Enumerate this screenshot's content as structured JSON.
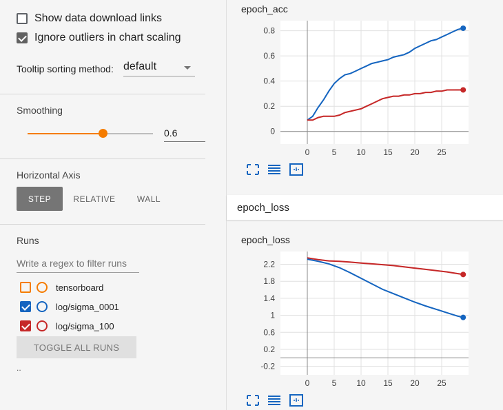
{
  "sidebar": {
    "show_download_label": "Show data download links",
    "show_download_checked": false,
    "ignore_outliers_label": "Ignore outliers in chart scaling",
    "ignore_outliers_checked": true,
    "tooltip_label": "Tooltip sorting method:",
    "tooltip_value": "default",
    "smoothing_title": "Smoothing",
    "smoothing_value": "0.6",
    "smoothing_fraction": 0.6,
    "horizontal_axis_title": "Horizontal Axis",
    "axis_buttons": [
      "STEP",
      "RELATIVE",
      "WALL"
    ],
    "axis_selected": "STEP",
    "runs_title": "Runs",
    "runs_filter_placeholder": "Write a regex to filter runs",
    "runs": [
      {
        "name": "tensorboard",
        "checked": false,
        "color": "#f57c00"
      },
      {
        "name": "log/sigma_0001",
        "checked": true,
        "color": "#1565c0"
      },
      {
        "name": "log/sigma_100",
        "checked": true,
        "color": "#c62828"
      }
    ],
    "toggle_all_label": "TOGGLE ALL RUNS",
    "dotdot": ".."
  },
  "main": {
    "acc_card_title": "epoch_acc",
    "group_header": "epoch_loss",
    "loss_card_title": "epoch_loss",
    "icons": [
      "expand-icon",
      "list-icon",
      "fit-domain-icon"
    ]
  },
  "chart_data": [
    {
      "type": "line",
      "title": "epoch_acc",
      "xlabel": "",
      "ylabel": "",
      "xlim": [
        -5,
        30
      ],
      "ylim": [
        -0.1,
        0.88
      ],
      "xticks": [
        0,
        5,
        10,
        15,
        20,
        25
      ],
      "yticks": [
        0,
        0.2,
        0.4,
        0.6,
        0.8
      ],
      "ytick_labels": [
        "0",
        "0.2",
        "0.4",
        "0.6",
        "0.8"
      ],
      "series": [
        {
          "color": "#1565c0",
          "x": [
            0,
            1,
            2,
            3,
            4,
            5,
            6,
            7,
            8,
            9,
            10,
            11,
            12,
            13,
            14,
            15,
            16,
            17,
            18,
            19,
            20,
            21,
            22,
            23,
            24,
            25,
            26,
            27,
            28,
            29
          ],
          "y": [
            0.09,
            0.12,
            0.19,
            0.25,
            0.32,
            0.38,
            0.42,
            0.45,
            0.46,
            0.48,
            0.5,
            0.52,
            0.54,
            0.55,
            0.56,
            0.57,
            0.59,
            0.6,
            0.61,
            0.63,
            0.66,
            0.68,
            0.7,
            0.72,
            0.73,
            0.75,
            0.77,
            0.79,
            0.81,
            0.82
          ]
        },
        {
          "color": "#c62828",
          "x": [
            0,
            1,
            2,
            3,
            4,
            5,
            6,
            7,
            8,
            9,
            10,
            11,
            12,
            13,
            14,
            15,
            16,
            17,
            18,
            19,
            20,
            21,
            22,
            23,
            24,
            25,
            26,
            27,
            28,
            29
          ],
          "y": [
            0.09,
            0.09,
            0.11,
            0.12,
            0.12,
            0.12,
            0.13,
            0.15,
            0.16,
            0.17,
            0.18,
            0.2,
            0.22,
            0.24,
            0.26,
            0.27,
            0.28,
            0.28,
            0.29,
            0.29,
            0.3,
            0.3,
            0.31,
            0.31,
            0.32,
            0.32,
            0.33,
            0.33,
            0.33,
            0.33
          ]
        }
      ]
    },
    {
      "type": "line",
      "title": "epoch_loss",
      "xlabel": "",
      "ylabel": "",
      "xlim": [
        -5,
        30
      ],
      "ylim": [
        -0.4,
        2.5
      ],
      "xticks": [
        0,
        5,
        10,
        15,
        20,
        25
      ],
      "yticks": [
        -0.2,
        0.2,
        0.6,
        1,
        1.4,
        1.8,
        2.2
      ],
      "ytick_labels": [
        "-0.2",
        "0.2",
        "0.6",
        "1",
        "1.4",
        "1.8",
        "2.2"
      ],
      "series": [
        {
          "color": "#c62828",
          "x": [
            0,
            2,
            4,
            6,
            8,
            10,
            12,
            14,
            16,
            18,
            20,
            22,
            24,
            26,
            28,
            29
          ],
          "y": [
            2.35,
            2.31,
            2.28,
            2.27,
            2.25,
            2.23,
            2.21,
            2.19,
            2.17,
            2.14,
            2.11,
            2.08,
            2.05,
            2.02,
            1.98,
            1.96
          ]
        },
        {
          "color": "#1565c0",
          "x": [
            0,
            2,
            4,
            6,
            8,
            10,
            12,
            14,
            16,
            18,
            20,
            22,
            24,
            26,
            28,
            29
          ],
          "y": [
            2.32,
            2.27,
            2.21,
            2.12,
            2.0,
            1.87,
            1.74,
            1.61,
            1.51,
            1.41,
            1.31,
            1.22,
            1.14,
            1.06,
            0.98,
            0.95
          ]
        }
      ]
    }
  ]
}
